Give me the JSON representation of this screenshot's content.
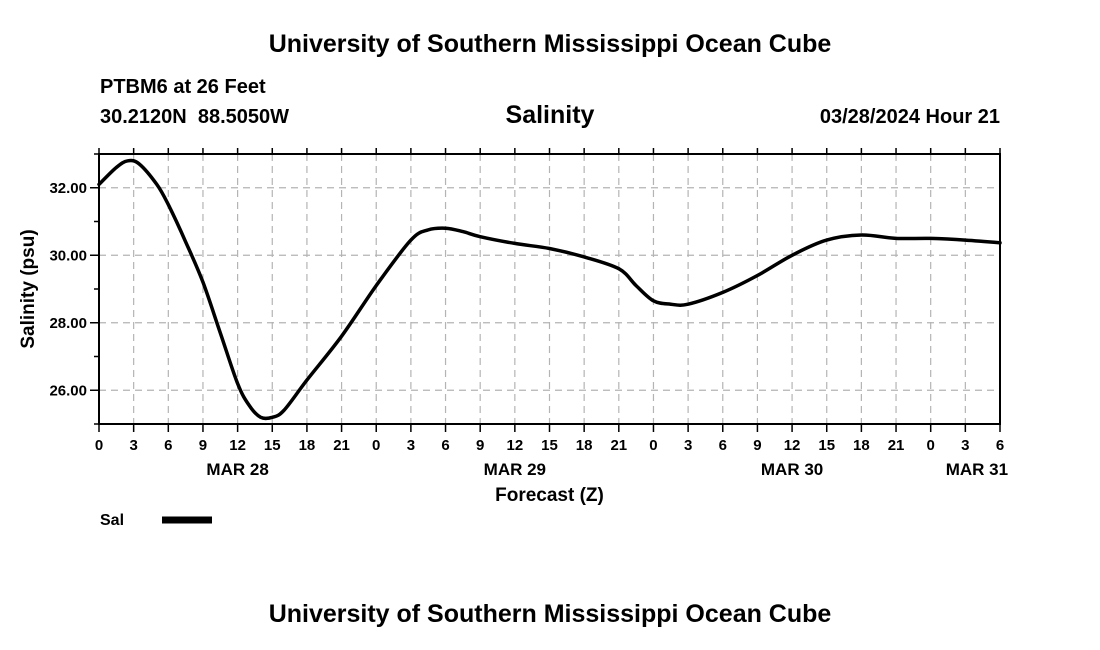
{
  "header": {
    "title": "University of Southern Mississippi Ocean Cube",
    "station": "PTBM6 at 26 Feet",
    "coords": "30.2120N  88.5050W",
    "timestamp": "03/28/2024 Hour 21"
  },
  "footer": {
    "title": "University of Southern Mississippi Ocean Cube"
  },
  "chart_data": {
    "type": "line",
    "title": "Salinity",
    "xlabel": "Forecast (Z)",
    "ylabel": "Salinity (psu)",
    "xlim": [
      0,
      78
    ],
    "ylim": [
      25,
      33
    ],
    "x_unit": "hours from MAR 28 00Z",
    "grid": true,
    "x_tick_labels": [
      "0",
      "3",
      "6",
      "9",
      "12",
      "15",
      "18",
      "21",
      "0",
      "3",
      "6",
      "9",
      "12",
      "15",
      "18",
      "21",
      "0",
      "3",
      "6",
      "9",
      "12",
      "15",
      "18",
      "21",
      "0",
      "3",
      "6"
    ],
    "y_ticks": [
      26,
      28,
      30,
      32
    ],
    "y_tick_labels": [
      "26.00",
      "28.00",
      "30.00",
      "32.00"
    ],
    "date_labels": [
      {
        "text": "MAR 28",
        "x": 12
      },
      {
        "text": "MAR 29",
        "x": 36
      },
      {
        "text": "MAR 30",
        "x": 60
      },
      {
        "text": "MAR 31",
        "x": 76
      }
    ],
    "legend": [
      {
        "label": "Sal",
        "color": "#000000"
      }
    ],
    "series": [
      {
        "name": "Sal",
        "color": "#000000",
        "x": [
          0,
          1.5,
          2.5,
          3.5,
          5,
          6,
          7.5,
          9,
          10.5,
          12,
          13,
          14,
          15,
          16,
          18,
          21,
          24,
          27,
          28.5,
          30,
          31.5,
          33,
          36,
          39,
          42,
          45,
          46.5,
          48,
          49.5,
          51,
          54,
          57,
          60,
          63,
          66,
          69,
          72,
          75,
          78
        ],
        "y": [
          32.1,
          32.6,
          32.8,
          32.7,
          32.1,
          31.5,
          30.4,
          29.2,
          27.7,
          26.2,
          25.55,
          25.2,
          25.2,
          25.4,
          26.3,
          27.6,
          29.1,
          30.45,
          30.75,
          30.8,
          30.7,
          30.55,
          30.35,
          30.2,
          29.95,
          29.6,
          29.1,
          28.65,
          28.55,
          28.55,
          28.9,
          29.4,
          30.0,
          30.45,
          30.6,
          30.5,
          30.5,
          30.45,
          30.37
        ]
      }
    ]
  }
}
